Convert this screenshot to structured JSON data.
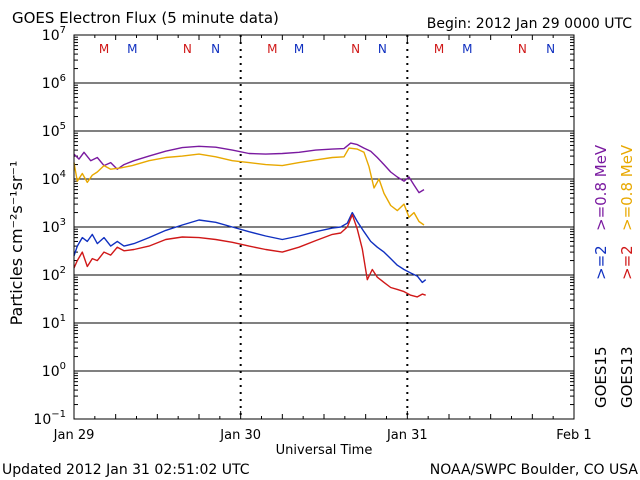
{
  "chart_data": {
    "type": "line",
    "title": "GOES Electron Flux (5 minute data)",
    "begin_label": "Begin: 2012 Jan 29 0000 UTC",
    "xlabel": "Universal Time",
    "ylabel": "Particles cm⁻²s⁻¹sr⁻¹",
    "y_scale": "log",
    "ylim": [
      0.1,
      10000000
    ],
    "y_ticks": [
      {
        "base": "10",
        "exp": "7",
        "value": 10000000
      },
      {
        "base": "10",
        "exp": "6",
        "value": 1000000
      },
      {
        "base": "10",
        "exp": "5",
        "value": 100000
      },
      {
        "base": "10",
        "exp": "4",
        "value": 10000
      },
      {
        "base": "10",
        "exp": "3",
        "value": 1000
      },
      {
        "base": "10",
        "exp": "2",
        "value": 100
      },
      {
        "base": "10",
        "exp": "1",
        "value": 10
      },
      {
        "base": "10",
        "exp": "0",
        "value": 1
      },
      {
        "base": "10",
        "exp": "−1",
        "value": 0.1
      }
    ],
    "xlim_days": [
      0,
      3
    ],
    "x_ticks": [
      {
        "label": "Jan 29",
        "day": 0
      },
      {
        "label": "Jan 30",
        "day": 1
      },
      {
        "label": "Jan 31",
        "day": 2
      },
      {
        "label": "Feb 1",
        "day": 3
      }
    ],
    "threshold_value": 1000,
    "mn_markers": [
      {
        "label": "M",
        "day": 0.18,
        "color": "#d01818"
      },
      {
        "label": "M",
        "day": 0.35,
        "color": "#1030c0"
      },
      {
        "label": "N",
        "day": 0.68,
        "color": "#d01818"
      },
      {
        "label": "N",
        "day": 0.85,
        "color": "#1030c0"
      },
      {
        "label": "M",
        "day": 1.19,
        "color": "#d01818"
      },
      {
        "label": "M",
        "day": 1.35,
        "color": "#1030c0"
      },
      {
        "label": "N",
        "day": 1.69,
        "color": "#d01818"
      },
      {
        "label": "N",
        "day": 1.85,
        "color": "#1030c0"
      },
      {
        "label": "M",
        "day": 2.19,
        "color": "#d01818"
      },
      {
        "label": "M",
        "day": 2.36,
        "color": "#1030c0"
      },
      {
        "label": "N",
        "day": 2.69,
        "color": "#d01818"
      },
      {
        "label": "N",
        "day": 2.86,
        "color": "#1030c0"
      }
    ],
    "series": [
      {
        "name": "GOES15 >=0.8 MeV",
        "color": "#7a1aa0",
        "days": [
          0,
          0.03,
          0.06,
          0.1,
          0.14,
          0.18,
          0.22,
          0.26,
          0.3,
          0.36,
          0.45,
          0.55,
          0.65,
          0.75,
          0.85,
          0.95,
          1.05,
          1.15,
          1.25,
          1.35,
          1.45,
          1.55,
          1.62,
          1.66,
          1.7,
          1.74,
          1.78,
          1.82,
          1.86,
          1.9,
          1.94,
          1.98,
          2.01,
          2.04,
          2.07,
          2.1
        ],
        "values": [
          33000,
          26000,
          36000,
          24000,
          28000,
          19000,
          22000,
          16000,
          20000,
          24000,
          30000,
          38000,
          45000,
          48000,
          46000,
          40000,
          34000,
          33000,
          34000,
          36000,
          40000,
          42000,
          43000,
          56000,
          52000,
          44000,
          38000,
          28000,
          20000,
          14000,
          11000,
          9000,
          11000,
          7500,
          5200,
          6000
        ]
      },
      {
        "name": "GOES13 >=0.8 MeV",
        "color": "#e8a800",
        "days": [
          0,
          0.02,
          0.05,
          0.08,
          0.11,
          0.14,
          0.18,
          0.22,
          0.28,
          0.35,
          0.45,
          0.55,
          0.65,
          0.75,
          0.85,
          0.95,
          1.05,
          1.15,
          1.25,
          1.35,
          1.45,
          1.55,
          1.62,
          1.65,
          1.7,
          1.74,
          1.77,
          1.8,
          1.83,
          1.86,
          1.9,
          1.94,
          1.98,
          2.01,
          2.04,
          2.07,
          2.1
        ],
        "values": [
          22000,
          9000,
          13000,
          8500,
          12000,
          14000,
          19000,
          16000,
          17000,
          19000,
          24000,
          28000,
          30000,
          33000,
          29000,
          24000,
          22000,
          20000,
          19000,
          22000,
          25000,
          28000,
          29000,
          44000,
          42000,
          36000,
          18000,
          6500,
          10000,
          5000,
          2800,
          2200,
          3000,
          1600,
          2000,
          1300,
          1100
        ]
      },
      {
        "name": "GOES15 >=2 MeV",
        "color": "#1030c0",
        "days": [
          0,
          0.02,
          0.05,
          0.08,
          0.11,
          0.14,
          0.18,
          0.22,
          0.26,
          0.3,
          0.36,
          0.45,
          0.55,
          0.65,
          0.75,
          0.85,
          0.95,
          1.05,
          1.15,
          1.25,
          1.35,
          1.45,
          1.55,
          1.6,
          1.64,
          1.67,
          1.7,
          1.74,
          1.78,
          1.82,
          1.86,
          1.9,
          1.94,
          1.98,
          2.02,
          2.06,
          2.09,
          2.11
        ],
        "values": [
          250,
          400,
          600,
          500,
          700,
          450,
          600,
          400,
          500,
          400,
          450,
          600,
          850,
          1100,
          1400,
          1250,
          1000,
          800,
          650,
          550,
          650,
          800,
          950,
          1000,
          1200,
          2000,
          1300,
          800,
          500,
          380,
          300,
          220,
          160,
          130,
          110,
          95,
          70,
          80
        ]
      },
      {
        "name": "GOES13 >=2 MeV",
        "color": "#d01818",
        "days": [
          0,
          0.02,
          0.05,
          0.08,
          0.11,
          0.14,
          0.18,
          0.22,
          0.26,
          0.3,
          0.36,
          0.45,
          0.55,
          0.65,
          0.75,
          0.85,
          0.95,
          1.05,
          1.15,
          1.25,
          1.35,
          1.45,
          1.55,
          1.6,
          1.64,
          1.67,
          1.7,
          1.73,
          1.76,
          1.79,
          1.82,
          1.86,
          1.9,
          1.94,
          1.98,
          2.02,
          2.06,
          2.09,
          2.11
        ],
        "values": [
          140,
          200,
          300,
          150,
          220,
          200,
          300,
          260,
          380,
          320,
          340,
          400,
          550,
          620,
          600,
          550,
          480,
          400,
          340,
          300,
          380,
          520,
          700,
          750,
          1000,
          1800,
          900,
          350,
          80,
          130,
          90,
          70,
          55,
          50,
          45,
          38,
          35,
          40,
          38
        ]
      }
    ],
    "right_labels": {
      "goes15": "GOES15",
      "goes13": "GOES13",
      "ge2": ">=2",
      "ge08_mev": ">=0.8  MeV"
    },
    "footer_left": "Updated 2012 Jan 31 02:51:02 UTC",
    "footer_right": "NOAA/SWPC Boulder, CO USA"
  }
}
